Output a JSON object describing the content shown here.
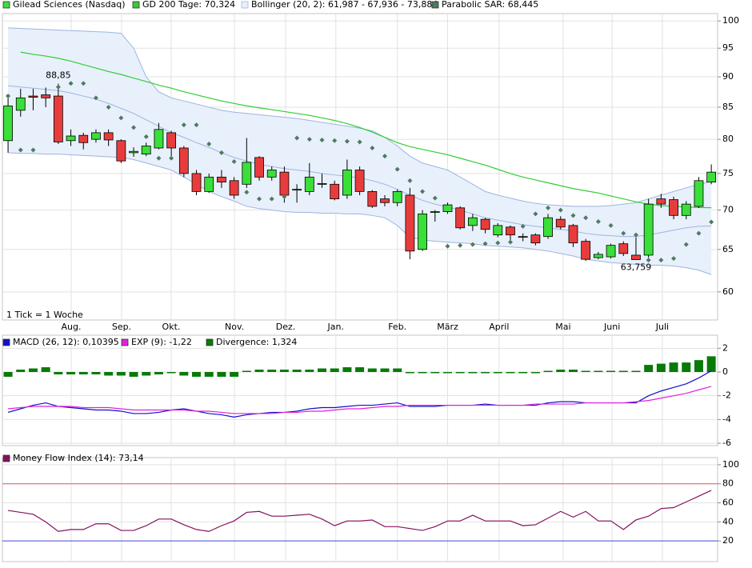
{
  "chart_data": [
    {
      "type": "candlestick",
      "categories": [
        null,
        null,
        null,
        null,
        null,
        null,
        null,
        null,
        null,
        null,
        null,
        null,
        null,
        null,
        null,
        null,
        null,
        null,
        null,
        null,
        null,
        null,
        null,
        null,
        null,
        null,
        null,
        null,
        null,
        null,
        null,
        null,
        null,
        null,
        null,
        null,
        null,
        null,
        null,
        null,
        null,
        null,
        null,
        null,
        null,
        null,
        null,
        null,
        null,
        null,
        null,
        null,
        null,
        null,
        null,
        null,
        null
      ],
      "xlim": [
        -0.45,
        56.5
      ],
      "xticks": [
        {
          "value": 5.03,
          "label": "Aug."
        },
        {
          "value": 9.04,
          "label": "Sep."
        },
        {
          "value": 12.99,
          "label": "Okt."
        },
        {
          "value": 18.03,
          "label": "Nov."
        },
        {
          "value": 22.1,
          "label": "Dez."
        },
        {
          "value": 26.1,
          "label": "Jan."
        },
        {
          "value": 31.0,
          "label": "Feb."
        },
        {
          "value": 35.0,
          "label": "März"
        },
        {
          "value": 39.1,
          "label": "April"
        },
        {
          "value": 44.2,
          "label": "Mai"
        },
        {
          "value": 48.1,
          "label": "Juni"
        },
        {
          "value": 52.1,
          "label": "Juli"
        }
      ],
      "ylim": [
        56.9,
        101.4
      ],
      "log": true,
      "grid": true,
      "yticks": [
        60,
        65,
        70,
        75,
        80,
        85,
        90,
        95,
        100
      ],
      "note": "1 Tick = 1 Woche",
      "annotations": [
        {
          "label": "88,85",
          "index": 4,
          "value": 88.85,
          "position": "above"
        },
        {
          "label": "63,759",
          "index": 50,
          "value": 63.759,
          "position": "below"
        }
      ],
      "series": [
        {
          "name": "Gilead Sciences (Nasdaq)",
          "type": "candlestick",
          "color": "#3adf3a",
          "down_color": "#e83c3c",
          "open": [
            79.8,
            84.5,
            86.8,
            87,
            86.8,
            79.8,
            80.6,
            80,
            81,
            79.8,
            78,
            77.8,
            78.7,
            81,
            78.7,
            75,
            72.5,
            74.5,
            74,
            73.5,
            77.3,
            74.5,
            75.2,
            72.8,
            72.5,
            73.5,
            73.5,
            72,
            75.5,
            72.5,
            71.5,
            71,
            72,
            65,
            69.7,
            69.8,
            70.3,
            68,
            68.8,
            66.8,
            67.8,
            66.5,
            66.8,
            66.6,
            68.8,
            68,
            66,
            64,
            64.1,
            65.7,
            64.3,
            64.3,
            71.5,
            71.4,
            69.3,
            70.5,
            73.8
          ],
          "high": [
            87,
            88,
            88,
            88.2,
            88.85,
            81.5,
            81,
            81.5,
            81.5,
            80,
            78.8,
            79.5,
            82.5,
            81.3,
            79,
            75.5,
            75,
            75.5,
            74.5,
            80.2,
            77.5,
            76,
            76,
            73.5,
            76.5,
            75,
            74,
            77,
            76,
            72.7,
            72,
            72.8,
            73,
            70,
            70,
            71,
            70.5,
            69.5,
            69,
            68.3,
            68,
            67,
            67,
            69.5,
            69.2,
            68.2,
            66.3,
            64.7,
            65.7,
            66,
            66.5,
            71.5,
            72.2,
            71.8,
            71.2,
            74.5,
            76.3
          ],
          "low": [
            78,
            83.5,
            84.5,
            85,
            79.3,
            79,
            78.5,
            79.5,
            79,
            76.5,
            77.4,
            77.5,
            78.5,
            77,
            74.5,
            72,
            72.3,
            73,
            71.5,
            73,
            74,
            74,
            71,
            71,
            72,
            73,
            71.3,
            71.5,
            72,
            70.3,
            70.5,
            70.5,
            63.8,
            64.8,
            68.5,
            69.5,
            67.5,
            67.3,
            67,
            66.5,
            66,
            66,
            65.5,
            66.3,
            67.5,
            65.3,
            63.6,
            63.8,
            63.9,
            64.2,
            63.759,
            64,
            70.3,
            68.8,
            68.8,
            70.3,
            73.5
          ],
          "close": [
            85.2,
            86.5,
            86.6,
            86.5,
            79.6,
            80.5,
            79.5,
            81,
            79.9,
            76.8,
            78.2,
            79,
            81.5,
            78.7,
            75,
            72.5,
            74.5,
            73.8,
            72,
            76.6,
            74.5,
            75.5,
            72,
            72.8,
            74.5,
            73.6,
            71.5,
            75.5,
            72.5,
            70.5,
            71,
            72.5,
            64.8,
            69.5,
            69.8,
            70.7,
            67.7,
            69,
            67.5,
            68,
            66.8,
            66.6,
            65.8,
            69,
            67.8,
            65.8,
            63.8,
            64.4,
            65.5,
            64.5,
            63.76,
            70.8,
            70.8,
            69.3,
            70.8,
            74,
            75.2
          ]
        },
        {
          "name": "GD 200 Tage: 70,324",
          "type": "line",
          "color": "#33cc33",
          "values": [
            null,
            94.3,
            93.9,
            93.6,
            93.2,
            92.7,
            92.1,
            91.5,
            90.9,
            90.4,
            89.8,
            89.2,
            88.6,
            88.1,
            87.5,
            87,
            86.5,
            86,
            85.6,
            85.2,
            84.9,
            84.6,
            84.3,
            84,
            83.7,
            83.3,
            82.9,
            82.4,
            81.8,
            81.1,
            80.3,
            79.5,
            78.9,
            78.5,
            78.1,
            77.7,
            77.2,
            76.7,
            76.2,
            75.6,
            75,
            74.5,
            74.1,
            73.7,
            73.3,
            72.9,
            72.6,
            72.3,
            71.9,
            71.5,
            71.1,
            70.8,
            70.6,
            70.5,
            70.4,
            70.35,
            70.324
          ]
        },
        {
          "name": "Bollinger (20, 2): 61,987 - 67,936 - 73,884",
          "type": "band",
          "color": "#9db5dd",
          "fill": "#e8f0fc",
          "upper": [
            98.7,
            98.6,
            98.5,
            98.4,
            98.3,
            98.2,
            98.1,
            98,
            97.9,
            97.7,
            95,
            90,
            87.5,
            86.5,
            86,
            85.5,
            85,
            84.5,
            84.2,
            84,
            83.8,
            83.6,
            83.4,
            83.2,
            82.9,
            82.6,
            82.3,
            82,
            81.7,
            81.3,
            80.3,
            79,
            77.5,
            76.5,
            76,
            75.5,
            74.5,
            73.5,
            72.5,
            72,
            71.6,
            71.2,
            70.9,
            70.7,
            70.6,
            70.5,
            70.5,
            70.5,
            70.6,
            70.8,
            71,
            71.5,
            72,
            72.5,
            73,
            73.5,
            73.884
          ],
          "middle": [
            88.5,
            88.3,
            88.1,
            87.9,
            87.7,
            87.3,
            86.8,
            86.3,
            85.6,
            84.8,
            84,
            83,
            82,
            81,
            80.3,
            79.5,
            78.8,
            78,
            77.3,
            76.8,
            76.3,
            76,
            75.7,
            75.5,
            75.3,
            75,
            74.8,
            74.6,
            74.4,
            74,
            73.5,
            72.8,
            72,
            71.3,
            70.8,
            70.4,
            70,
            69.5,
            69,
            68.7,
            68.4,
            68.1,
            67.9,
            67.7,
            67.5,
            67.3,
            67,
            66.8,
            66.7,
            66.6,
            66.6,
            66.8,
            67.1,
            67.4,
            67.7,
            67.9,
            67.936
          ],
          "lower": [
            78,
            77.9,
            77.9,
            77.8,
            77.8,
            77.7,
            77.6,
            77.5,
            77.4,
            77.3,
            77,
            76.5,
            76,
            75.5,
            74.5,
            73.5,
            72.5,
            71.8,
            71.2,
            70.5,
            70.2,
            70,
            69.8,
            69.7,
            69.7,
            69.6,
            69.6,
            69.5,
            69.5,
            69.3,
            69,
            68,
            66.5,
            66.2,
            66,
            65.9,
            65.8,
            65.7,
            65.5,
            65.4,
            65.3,
            65.2,
            65,
            64.8,
            64.5,
            64.2,
            63.8,
            63.6,
            63.4,
            63.3,
            63.2,
            63.1,
            63.1,
            63,
            62.8,
            62.5,
            61.987
          ]
        },
        {
          "name": "Parabolic SAR: 68,445",
          "type": "scatter",
          "color": "#4f7a60",
          "values": [
            86.8,
            78.4,
            78.4,
            null,
            88.3,
            88.9,
            88.9,
            86.5,
            85,
            83.3,
            81.8,
            80.4,
            77.2,
            77.2,
            82.2,
            82.2,
            79.3,
            78,
            76.7,
            72.4,
            71.5,
            71.5,
            71.8,
            80.2,
            80,
            79.9,
            79.8,
            79.7,
            79.6,
            78.7,
            77.5,
            75.6,
            74,
            72.5,
            71.6,
            65.4,
            65.5,
            65.6,
            65.7,
            65.8,
            65.9,
            67.9,
            69.5,
            70.3,
            70,
            69.3,
            69,
            68.5,
            68,
            67,
            66.8,
            63.7,
            63.7,
            63.9,
            65.6,
            67,
            68.445
          ]
        }
      ]
    },
    {
      "type": "macd",
      "categories": [
        null,
        null,
        null,
        null,
        null,
        null,
        null,
        null,
        null,
        null,
        null,
        null,
        null,
        null,
        null,
        null,
        null,
        null,
        null,
        null,
        null,
        null,
        null,
        null,
        null,
        null,
        null,
        null,
        null,
        null,
        null,
        null,
        null,
        null,
        null,
        null,
        null,
        null,
        null,
        null,
        null,
        null,
        null,
        null,
        null,
        null,
        null,
        null,
        null,
        null,
        null,
        null,
        null,
        null,
        null,
        null,
        null
      ],
      "xlim": [
        -0.45,
        56.5
      ],
      "ylim": [
        -6.2,
        3.1
      ],
      "grid": true,
      "yticks": [
        2,
        0,
        -2,
        -4,
        -6
      ],
      "series": [
        {
          "name": "MACD (26, 12): 0,10395",
          "type": "line",
          "color": "#1010c8",
          "values": [
            -3.4,
            -3.1,
            -2.8,
            -2.6,
            -2.9,
            -3,
            -3.1,
            -3.2,
            -3.2,
            -3.3,
            -3.5,
            -3.5,
            -3.4,
            -3.2,
            -3.1,
            -3.3,
            -3.5,
            -3.6,
            -3.8,
            -3.6,
            -3.5,
            -3.4,
            -3.4,
            -3.3,
            -3.1,
            -3,
            -3,
            -2.9,
            -2.8,
            -2.8,
            -2.7,
            -2.6,
            -2.9,
            -2.9,
            -2.9,
            -2.8,
            -2.8,
            -2.8,
            -2.7,
            -2.8,
            -2.8,
            -2.8,
            -2.8,
            -2.6,
            -2.5,
            -2.5,
            -2.6,
            -2.6,
            -2.6,
            -2.6,
            -2.6,
            -2,
            -1.6,
            -1.3,
            -1,
            -0.5,
            0.10395
          ]
        },
        {
          "name": "EXP (9): -1,22",
          "type": "line",
          "color": "#e020e0",
          "values": [
            -3.1,
            -3,
            -2.9,
            -2.9,
            -2.9,
            -2.9,
            -3,
            -3,
            -3,
            -3.1,
            -3.2,
            -3.2,
            -3.2,
            -3.2,
            -3.2,
            -3.3,
            -3.3,
            -3.4,
            -3.5,
            -3.5,
            -3.5,
            -3.5,
            -3.4,
            -3.4,
            -3.3,
            -3.3,
            -3.2,
            -3.1,
            -3.1,
            -3,
            -2.9,
            -2.9,
            -2.8,
            -2.8,
            -2.8,
            -2.8,
            -2.8,
            -2.8,
            -2.8,
            -2.8,
            -2.8,
            -2.8,
            -2.7,
            -2.7,
            -2.7,
            -2.7,
            -2.6,
            -2.6,
            -2.6,
            -2.6,
            -2.5,
            -2.4,
            -2.2,
            -2,
            -1.8,
            -1.5,
            -1.22
          ]
        },
        {
          "name": "Divergence: 1,324",
          "type": "bar",
          "color": "#077a07",
          "values": [
            -0.4,
            0.2,
            0.3,
            0.4,
            -0.2,
            -0.2,
            -0.2,
            -0.2,
            -0.3,
            -0.3,
            -0.4,
            -0.3,
            -0.2,
            -0.1,
            -0.3,
            -0.4,
            -0.4,
            -0.4,
            -0.4,
            0.1,
            0.2,
            0.2,
            0.2,
            0.2,
            0.2,
            0.3,
            0.3,
            0.4,
            0.4,
            0.3,
            0.3,
            0.3,
            -0.1,
            -0.1,
            -0.1,
            -0.1,
            -0.1,
            -0.1,
            -0.1,
            -0.1,
            -0.1,
            -0.1,
            -0.1,
            0.1,
            0.2,
            0.2,
            0.1,
            0.1,
            0.1,
            0.1,
            0.1,
            0.6,
            0.7,
            0.8,
            0.8,
            1,
            1.324
          ]
        }
      ]
    },
    {
      "type": "line",
      "categories": [
        null,
        null,
        null,
        null,
        null,
        null,
        null,
        null,
        null,
        null,
        null,
        null,
        null,
        null,
        null,
        null,
        null,
        null,
        null,
        null,
        null,
        null,
        null,
        null,
        null,
        null,
        null,
        null,
        null,
        null,
        null,
        null,
        null,
        null,
        null,
        null,
        null,
        null,
        null,
        null,
        null,
        null,
        null,
        null,
        null,
        null,
        null,
        null,
        null,
        null,
        null,
        null,
        null,
        null,
        null,
        null,
        null
      ],
      "xlim": [
        -0.45,
        56.5
      ],
      "ylim": [
        -1.7,
        107.5
      ],
      "grid": true,
      "yticks": [
        20,
        40,
        60,
        80,
        100
      ],
      "hlines": [
        {
          "value": 80,
          "color": "#e05a5a"
        },
        {
          "value": 20,
          "color": "#4a4ae0"
        }
      ],
      "series": [
        {
          "name": "Money Flow Index (14): 73,14",
          "type": "line",
          "color": "#86105e",
          "values": [
            52,
            50,
            48,
            40,
            30,
            32,
            32,
            38,
            38,
            31,
            31,
            36,
            43,
            43,
            37,
            32,
            30,
            36,
            41,
            50,
            51,
            46,
            46,
            47,
            48,
            43,
            36,
            41,
            41,
            42,
            35,
            35,
            33,
            31,
            35,
            41,
            41,
            47,
            41,
            41,
            41,
            36,
            37,
            44,
            51,
            45,
            51,
            41,
            41,
            32,
            42,
            46,
            54,
            55,
            61,
            67,
            73.14
          ]
        }
      ]
    }
  ]
}
